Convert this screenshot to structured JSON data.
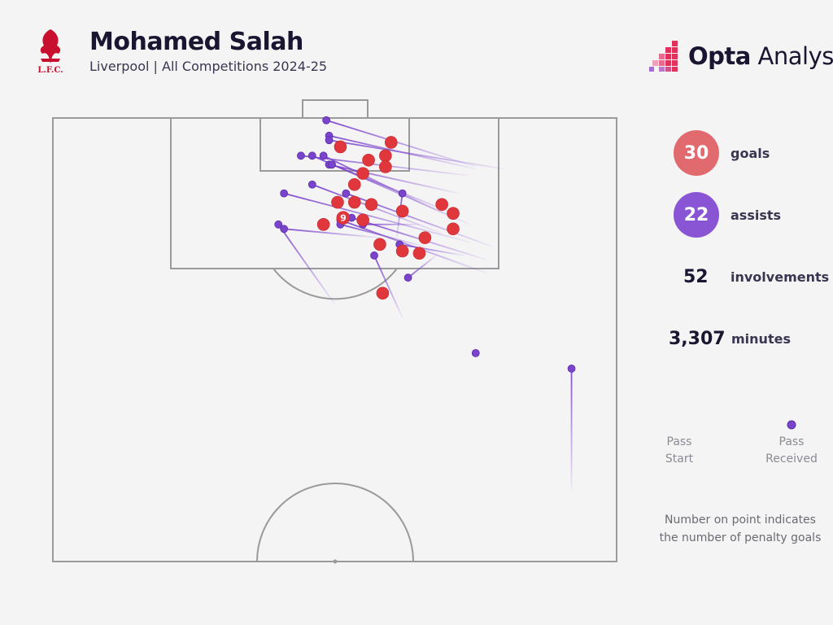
{
  "header": {
    "player": "Mohamed Salah",
    "subtitle": "Liverpool | All Competitions 2024-25",
    "club_logo_text": "L.F.C.",
    "brand_bold": "Opta",
    "brand_light": " Analyst"
  },
  "stats": {
    "goals": {
      "value": "30",
      "label": "goals",
      "color": "#e06a6e"
    },
    "assists": {
      "value": "22",
      "label": "assists",
      "color": "#8a55d4"
    },
    "involvements": {
      "value": "52",
      "label": "involvements"
    },
    "minutes": {
      "value": "3,307",
      "label": "minutes"
    }
  },
  "legend": {
    "pass_start": "Pass\nStart",
    "pass_received": "Pass\nReceived"
  },
  "footnote": "Number on point indicates\nthe number of penalty goals",
  "colors": {
    "goal": "#e0373c",
    "assist": "#7b44cc",
    "pitch_line": "#9a9a9a",
    "background": "#f5f4f5"
  },
  "chart_data": {
    "type": "scatter",
    "description_units": "pitch coordinates, x 0-100 across the pitch width (left to right), y 0-100 from the attacking goal line downward",
    "goals": [
      {
        "x": 60,
        "y": 5.5
      },
      {
        "x": 51,
        "y": 6.5
      },
      {
        "x": 59,
        "y": 8.5
      },
      {
        "x": 56,
        "y": 9.5
      },
      {
        "x": 59,
        "y": 11
      },
      {
        "x": 55,
        "y": 12.5
      },
      {
        "x": 53.5,
        "y": 15
      },
      {
        "x": 50.5,
        "y": 19
      },
      {
        "x": 53.5,
        "y": 19
      },
      {
        "x": 56.5,
        "y": 19.5
      },
      {
        "x": 62,
        "y": 21
      },
      {
        "x": 69,
        "y": 19.5
      },
      {
        "x": 71,
        "y": 21.5
      },
      {
        "x": 71,
        "y": 25
      },
      {
        "x": 51.5,
        "y": 22.5,
        "penalties": "9"
      },
      {
        "x": 48,
        "y": 24
      },
      {
        "x": 55,
        "y": 23
      },
      {
        "x": 66,
        "y": 27
      },
      {
        "x": 58,
        "y": 28.5
      },
      {
        "x": 62,
        "y": 30
      },
      {
        "x": 65,
        "y": 30.5
      },
      {
        "x": 58.5,
        "y": 39.5
      }
    ],
    "assists": [
      {
        "sx": 75,
        "sy": 11,
        "rx": 48.5,
        "ry": 0.5
      },
      {
        "sx": 75,
        "sy": 11.5,
        "rx": 49,
        "ry": 4
      },
      {
        "sx": 80,
        "sy": 11.5,
        "rx": 49,
        "ry": 5
      },
      {
        "sx": 74,
        "sy": 13,
        "rx": 44,
        "ry": 8.5
      },
      {
        "sx": 72,
        "sy": 17,
        "rx": 49,
        "ry": 10.5
      },
      {
        "sx": 71,
        "sy": 21.5,
        "rx": 49.5,
        "ry": 10.5
      },
      {
        "sx": 74,
        "sy": 24,
        "rx": 46,
        "ry": 8.5
      },
      {
        "sx": 70,
        "sy": 22,
        "rx": 48,
        "ry": 8.5
      },
      {
        "sx": 69,
        "sy": 26,
        "rx": 46,
        "ry": 15
      },
      {
        "sx": 74,
        "sy": 28,
        "rx": 41,
        "ry": 17
      },
      {
        "sx": 78,
        "sy": 29,
        "rx": 52,
        "ry": 17
      },
      {
        "sx": 77,
        "sy": 32,
        "rx": 53,
        "ry": 22.5
      },
      {
        "sx": 77,
        "sy": 35,
        "rx": 51,
        "ry": 23
      },
      {
        "sx": 65,
        "sy": 24,
        "rx": 55,
        "ry": 24
      },
      {
        "sx": 61,
        "sy": 27,
        "rx": 62,
        "ry": 17
      },
      {
        "sx": 66,
        "sy": 29,
        "rx": 51,
        "ry": 24
      },
      {
        "sx": 58,
        "sy": 27,
        "rx": 41,
        "ry": 25
      },
      {
        "sx": 73,
        "sy": 31,
        "rx": 61.5,
        "ry": 28.5
      },
      {
        "sx": 62,
        "sy": 45,
        "rx": 57,
        "ry": 31
      },
      {
        "sx": 50,
        "sy": 42,
        "rx": 40,
        "ry": 24
      },
      {
        "sx": 68,
        "sy": 31,
        "rx": 63,
        "ry": 36
      },
      {
        "sx": 92,
        "sy": 84,
        "rx": 92,
        "ry": 56.5
      }
    ],
    "extra_points": [
      {
        "x": 75,
        "y": 53
      }
    ]
  }
}
